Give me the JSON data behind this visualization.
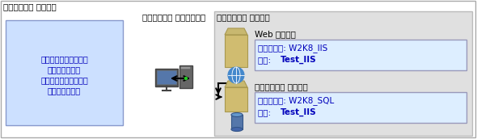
{
  "title_outer": "ネットワーク ドメイン",
  "title_inner": "ネットワーク ドメイン",
  "label_desktop": "デスクトップ クライアント",
  "label_web": "Web サーバー",
  "label_db": "データベース サーバー",
  "client_text_lines": [
    "テスト担当者が環境に",
    "接続するために",
    "使用するクライアント",
    "コンピューター"
  ],
  "box_web_line1": "仮想マシン: W2K8_IIS",
  "box_web_line2_pre": "名前: ",
  "box_web_line2_bold": "Test_IIS",
  "box_db_line1": "仮想マシン: W2K8_SQL",
  "box_db_line2_pre": "名前: ",
  "box_db_line2_bold": "Test_IIS",
  "bg_white": "#ffffff",
  "bg_outer": "#f0f0f0",
  "bg_inner": "#e0e0e0",
  "bg_client_box": "#cce0ff",
  "bg_info_box": "#ddeeff",
  "border_outer": "#aaaaaa",
  "border_inner": "#bbbbbb",
  "border_info": "#9999bb",
  "text_blue": "#0000bb",
  "text_black": "#000000",
  "server_tan": "#c8b870",
  "server_tan_dark": "#a89850",
  "server_blue": "#4488cc",
  "db_blue": "#5577aa"
}
